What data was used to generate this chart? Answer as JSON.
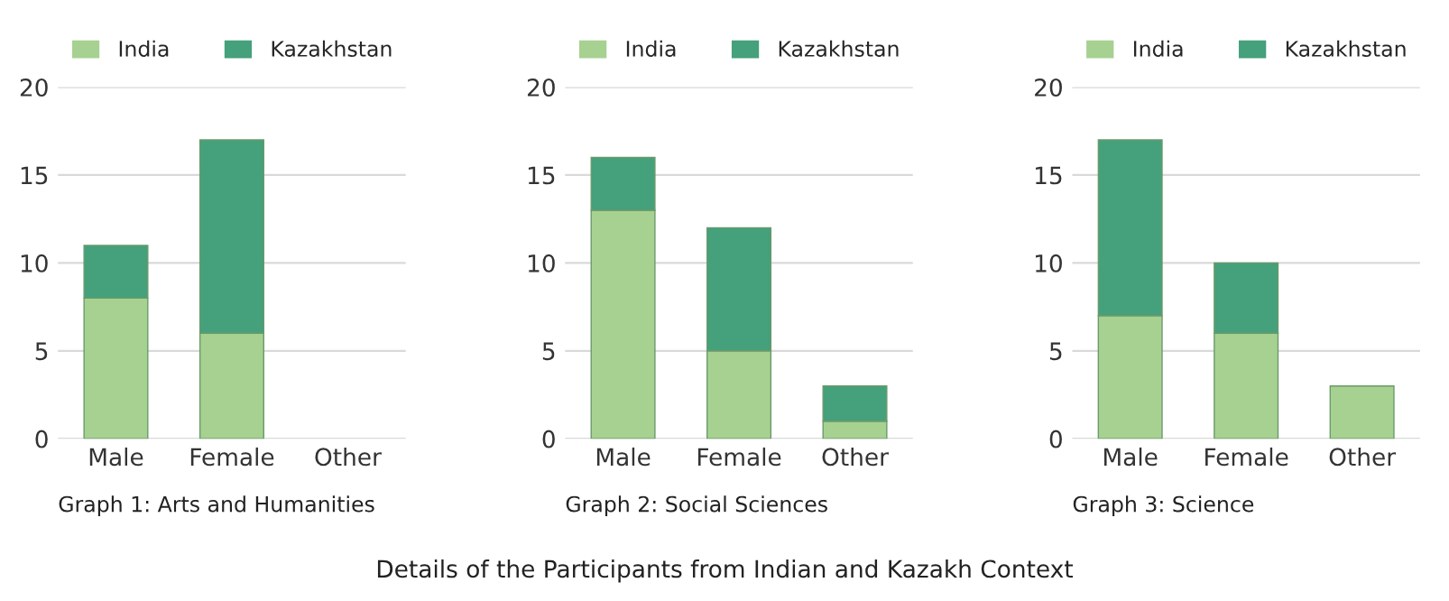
{
  "chart_data": [
    {
      "type": "bar",
      "stacked": true,
      "xlabel": "Graph 1: Arts and Humanities",
      "categories": [
        "Male",
        "Female",
        "Other"
      ],
      "ylim": [
        0,
        20
      ],
      "yticks": [
        0,
        5,
        10,
        15,
        20
      ],
      "grid": "y",
      "legend": "top",
      "series": [
        {
          "name": "India",
          "color": "#a6d191",
          "values": [
            8,
            6,
            0
          ]
        },
        {
          "name": "Kazakhstan",
          "color": "#45a07c",
          "values": [
            3,
            11,
            0
          ]
        }
      ]
    },
    {
      "type": "bar",
      "stacked": true,
      "xlabel": "Graph 2: Social Sciences",
      "categories": [
        "Male",
        "Female",
        "Other"
      ],
      "ylim": [
        0,
        20
      ],
      "yticks": [
        0,
        5,
        10,
        15,
        20
      ],
      "grid": "y",
      "legend": "top",
      "series": [
        {
          "name": "India",
          "color": "#a6d191",
          "values": [
            13,
            5,
            1
          ]
        },
        {
          "name": "Kazakhstan",
          "color": "#45a07c",
          "values": [
            3,
            7,
            2
          ]
        }
      ]
    },
    {
      "type": "bar",
      "stacked": true,
      "xlabel": "Graph 3: Science",
      "categories": [
        "Male",
        "Female",
        "Other"
      ],
      "ylim": [
        0,
        20
      ],
      "yticks": [
        0,
        5,
        10,
        15,
        20
      ],
      "grid": "y",
      "legend": "top",
      "annotations": [
        "Details of the Participants from Indian and Kazakh Context"
      ],
      "series": [
        {
          "name": "India",
          "color": "#a6d191",
          "values": [
            7,
            6,
            3
          ]
        },
        {
          "name": "Kazakhstan",
          "color": "#45a07c",
          "values": [
            10,
            4,
            0
          ]
        }
      ]
    }
  ]
}
